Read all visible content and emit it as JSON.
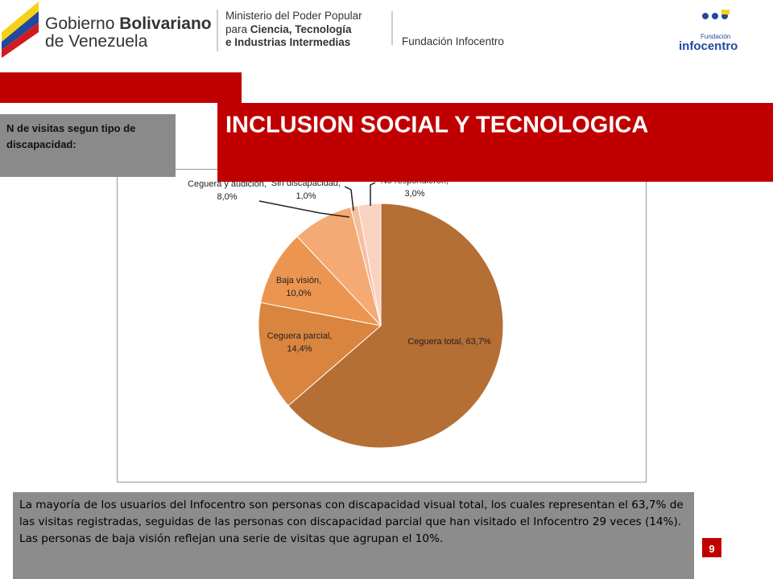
{
  "header": {
    "gov_line1_a": "Gobierno ",
    "gov_line1_b": "Bolivariano",
    "gov_line2": "de Venezuela",
    "ministry_line1": "Ministerio del Poder Popular",
    "ministry_line2_a": "para ",
    "ministry_line2_b": "Ciencia, Tecnología",
    "ministry_line3": "e Industrias Intermedias",
    "foundation": "Fundación Infocentro",
    "logo_small": "Fundación",
    "logo_big": "infocentro"
  },
  "title": "INCLUSION SOCIAL Y TECNOLOGICA",
  "side_label": "N de visitas segun tipo de discapacidad:",
  "chart_data": {
    "type": "pie",
    "categories": [
      "Ceguera total,",
      "Ceguera parcial,",
      "Baja visión,",
      "Ceguera y audición,",
      "Sin discapacidad,",
      "No respondieron,"
    ],
    "values": [
      63.7,
      14.4,
      10.0,
      8.0,
      1.0,
      3.0
    ],
    "value_labels": [
      "63,7%",
      "14,4%",
      "10,0%",
      "8,0%",
      "1,0%",
      "3,0%"
    ],
    "colors": [
      "#b56e34",
      "#d9843f",
      "#ec9550",
      "#f4aa74",
      "#f7bfa0",
      "#f9d3c0"
    ]
  },
  "body_text": "La mayoría de los usuarios del Infocentro son personas con discapacidad visual total, los cuales representan el 63,7% de las visitas registradas, seguidas de las personas con discapacidad parcial que han visitado el Infocentro 29 veces (14%). Las personas de baja visión reflejan una serie de visitas que agrupan el 10%.",
  "page_number": "9"
}
